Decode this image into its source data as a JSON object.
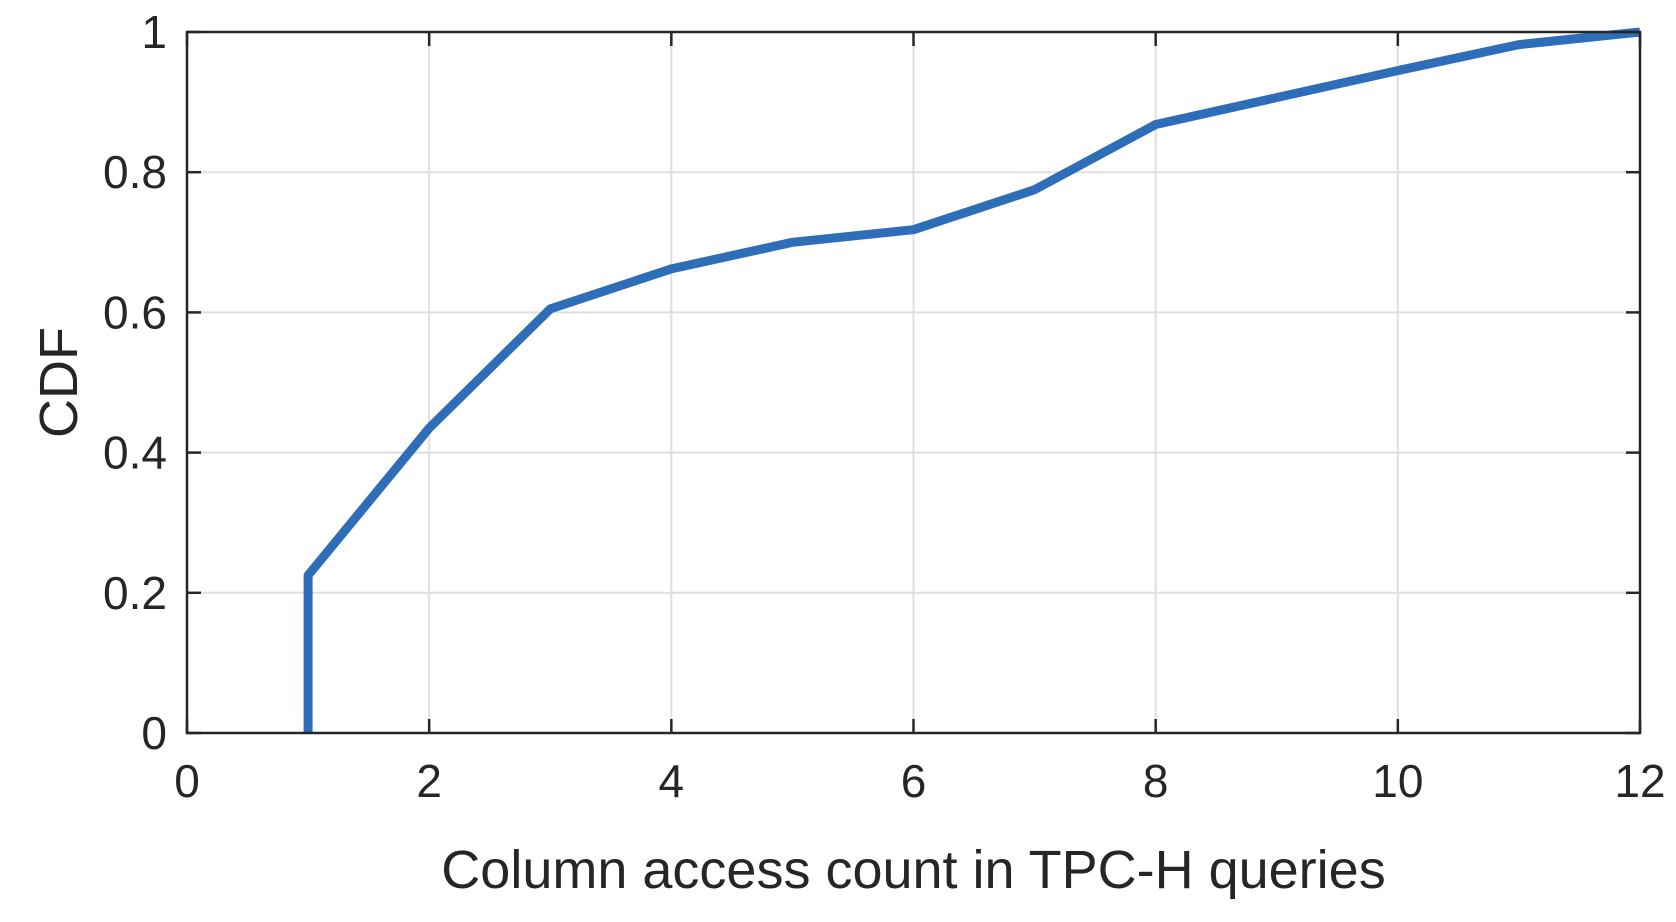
{
  "chart_data": {
    "type": "line",
    "title": "",
    "xlabel": "Column access count in TPC-H queries",
    "ylabel": "CDF",
    "xlim": [
      0,
      12
    ],
    "ylim": [
      0,
      1
    ],
    "xticks": [
      0,
      2,
      4,
      6,
      8,
      10,
      12
    ],
    "xtick_labels": [
      "0",
      "2",
      "4",
      "6",
      "8",
      "10",
      "12"
    ],
    "yticks": [
      0,
      0.2,
      0.4,
      0.6,
      0.8,
      1
    ],
    "ytick_labels": [
      "0",
      "0.2",
      "0.4",
      "0.6",
      "0.8",
      "1"
    ],
    "grid": true,
    "legend": "none",
    "series": [
      {
        "color": "#2e6db7",
        "x": [
          1,
          1,
          2,
          3,
          4,
          5,
          6,
          7,
          8,
          10,
          11,
          12
        ],
        "y": [
          0,
          0.225,
          0.435,
          0.605,
          0.662,
          0.7,
          0.718,
          0.775,
          0.868,
          0.945,
          0.982,
          1.0
        ]
      }
    ]
  }
}
